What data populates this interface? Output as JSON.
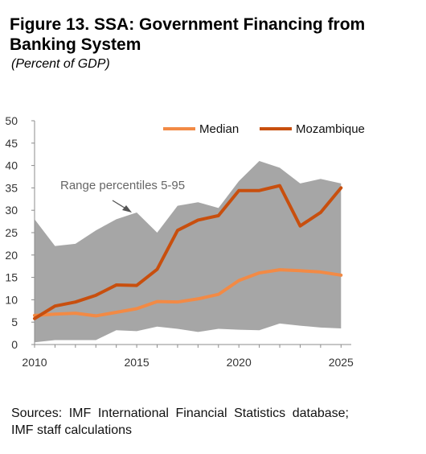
{
  "header": {
    "title": "Figure 13. SSA: Government Financing from Banking System",
    "subtitle": "(Percent of GDP)"
  },
  "footer": {
    "source": "Sources: IMF International Financial Statistics database; IMF staff calculations"
  },
  "colors": {
    "median": "#f28a45",
    "mozambique": "#c84f0e",
    "range": "#a6a6a6",
    "axis": "#8c8c8c"
  },
  "chart_data": {
    "type": "line",
    "x": [
      2010,
      2011,
      2012,
      2013,
      2014,
      2015,
      2016,
      2017,
      2018,
      2019,
      2020,
      2021,
      2022,
      2023,
      2024,
      2025
    ],
    "xticks": [
      2010,
      2015,
      2020,
      2025
    ],
    "yticks": [
      0,
      5,
      10,
      15,
      20,
      25,
      30,
      35,
      40,
      45,
      50
    ],
    "xlim": [
      2010,
      2025.5
    ],
    "ylim": [
      0,
      50
    ],
    "band": {
      "name": "Range percentiles 5-95",
      "low": [
        0.5,
        1.0,
        1.0,
        1.0,
        3.2,
        3.0,
        4.0,
        3.5,
        2.8,
        3.5,
        3.3,
        3.2,
        4.7,
        4.2,
        3.8,
        3.6
      ],
      "high": [
        28,
        22,
        22.5,
        25.5,
        28,
        29.5,
        25,
        31,
        31.8,
        30.5,
        36.5,
        41,
        39.5,
        36,
        37,
        36
      ]
    },
    "series": [
      {
        "name": "Median",
        "values": [
          6.5,
          6.8,
          7.0,
          6.4,
          7.2,
          8.0,
          9.6,
          9.5,
          10.2,
          11.2,
          14.3,
          16.0,
          16.7,
          16.5,
          16.2,
          15.5
        ]
      },
      {
        "name": "Mozambique",
        "values": [
          5.8,
          8.6,
          9.5,
          11.0,
          13.3,
          13.2,
          16.8,
          25.5,
          27.8,
          28.8,
          34.4,
          34.4,
          35.5,
          26.5,
          29.5,
          35.0
        ]
      }
    ],
    "annotation": "Range percentiles 5-95",
    "legend_position": "top-right",
    "grid": false
  }
}
